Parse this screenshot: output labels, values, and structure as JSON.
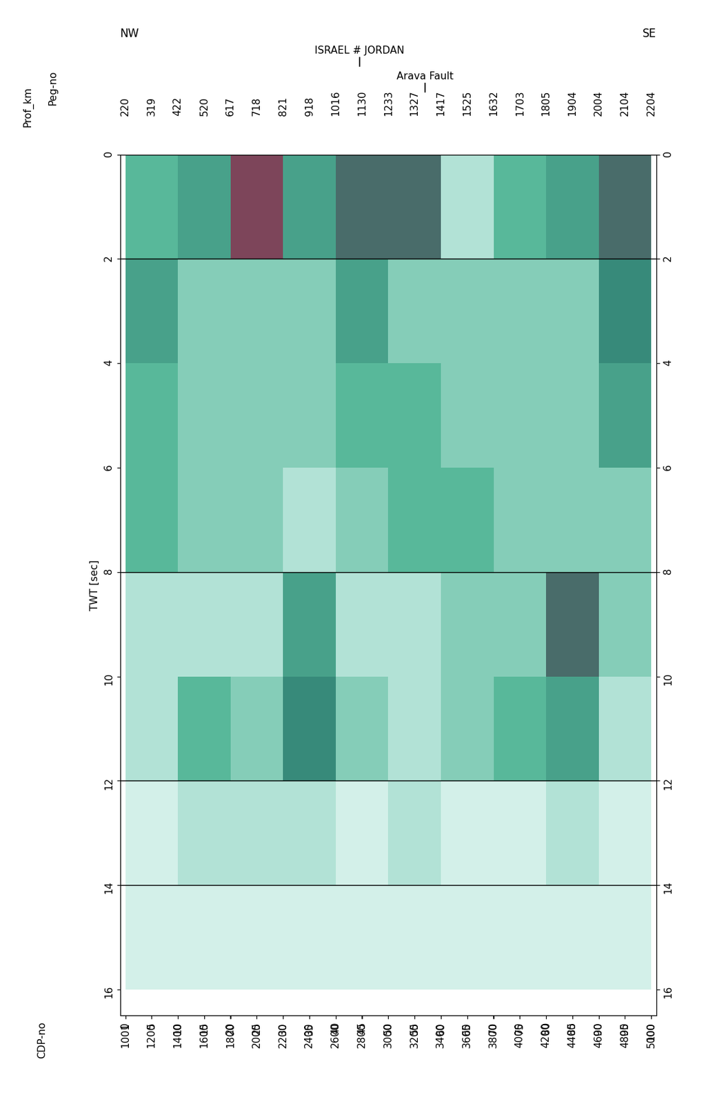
{
  "chart_data": {
    "type": "seismic_section",
    "xlabel": "Prof_km",
    "x2label": "Peg-no",
    "x3label": "CDP-no",
    "ylabel": "TWT [sec]",
    "direction_labels": [
      "NW",
      "SE"
    ],
    "xlim": [
      -1,
      101
    ],
    "xticks": [
      0,
      5,
      10,
      15,
      20,
      25,
      30,
      35,
      40,
      45,
      50,
      55,
      60,
      65,
      70,
      75,
      80,
      85,
      90,
      95,
      100
    ],
    "peg_no": [
      220,
      319,
      422,
      520,
      617,
      718,
      821,
      918,
      1016,
      1130,
      1233,
      1327,
      1417,
      1525,
      1632,
      1703,
      1805,
      1904,
      2004,
      2104,
      2204
    ],
    "x3lim": [
      961,
      5041
    ],
    "x3ticks": [
      1001,
      1200,
      1400,
      1600,
      1800,
      2000,
      2200,
      2400,
      2600,
      2800,
      3000,
      3200,
      3400,
      3600,
      3800,
      4000,
      4200,
      4400,
      4600,
      4800,
      5000
    ],
    "ylim": [
      16.5,
      0
    ],
    "yticks": [
      0,
      2,
      4,
      6,
      8,
      10,
      12,
      14,
      16
    ],
    "reference_lines": [
      2,
      8,
      12,
      14
    ],
    "annotations": [
      {
        "text": "ISRAEL # JORDAN",
        "x": 44.5
      },
      {
        "text": "Arava Fault",
        "x": 57
      }
    ],
    "amplitude_cells": {
      "x_edges": [
        0,
        10,
        20,
        30,
        40,
        50,
        60,
        70,
        80,
        90,
        100
      ],
      "y_edges": [
        0,
        2,
        4,
        6,
        8,
        10,
        12,
        14,
        16
      ],
      "clim": [
        0,
        1
      ],
      "values": [
        [
          0.5,
          0.6,
          0.9,
          0.6,
          0.8,
          0.8,
          0.3,
          0.5,
          0.6,
          0.8
        ],
        [
          0.6,
          0.4,
          0.4,
          0.4,
          0.6,
          0.4,
          0.4,
          0.4,
          0.4,
          0.7
        ],
        [
          0.5,
          0.4,
          0.4,
          0.4,
          0.5,
          0.5,
          0.4,
          0.4,
          0.4,
          0.6
        ],
        [
          0.5,
          0.4,
          0.4,
          0.3,
          0.4,
          0.5,
          0.5,
          0.4,
          0.4,
          0.4
        ],
        [
          0.3,
          0.3,
          0.3,
          0.6,
          0.3,
          0.3,
          0.4,
          0.4,
          0.8,
          0.4
        ],
        [
          0.3,
          0.5,
          0.4,
          0.7,
          0.4,
          0.3,
          0.4,
          0.5,
          0.6,
          0.3
        ],
        [
          0.2,
          0.3,
          0.3,
          0.3,
          0.2,
          0.3,
          0.2,
          0.2,
          0.3,
          0.2
        ],
        [
          0.2,
          0.2,
          0.2,
          0.2,
          0.2,
          0.2,
          0.2,
          0.2,
          0.2,
          0.2
        ]
      ]
    }
  }
}
